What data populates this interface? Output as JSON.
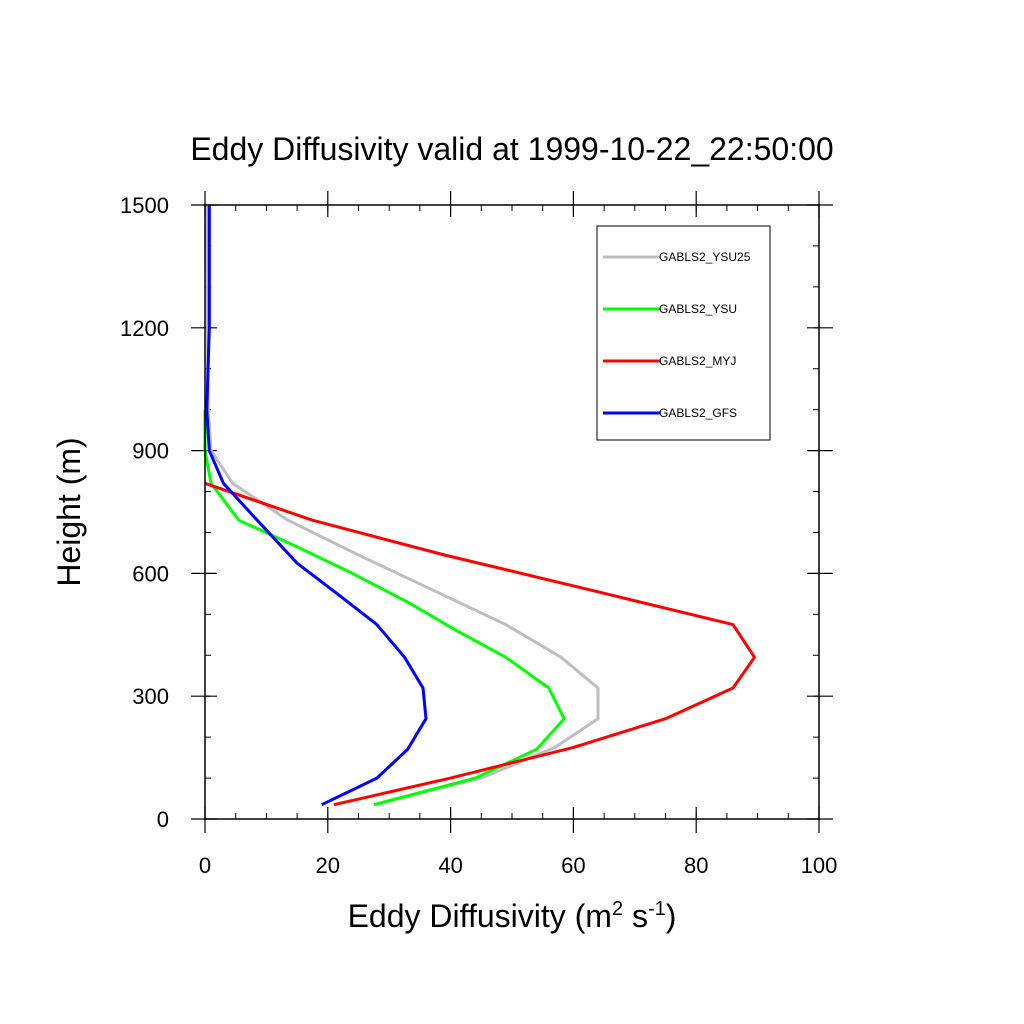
{
  "chart_data": {
    "type": "line",
    "title": "Eddy Diffusivity valid at 1999-10-22_22:50:00",
    "xlabel": {
      "text": "Eddy Diffusivity (m",
      "sup1": "2",
      "mid": " s",
      "sup2": "-1",
      "end": ")"
    },
    "ylabel": "Height (m)",
    "xlim": [
      0,
      100
    ],
    "ylim": [
      0,
      1500
    ],
    "xticks": [
      0,
      20,
      40,
      60,
      80,
      100
    ],
    "xtick_labels": [
      "0",
      "20",
      "40",
      "60",
      "80",
      "100"
    ],
    "yticks": [
      0,
      300,
      600,
      900,
      1200,
      1500
    ],
    "ytick_labels": [
      "0",
      "300",
      "600",
      "900",
      "1200",
      "1500"
    ],
    "grid": false,
    "legend_position": "top-right",
    "series": [
      {
        "name": "GABLS2_YSU25",
        "color": "#bebebe",
        "points": [
          [
            27.5,
            35
          ],
          [
            45,
            100
          ],
          [
            57,
            175
          ],
          [
            64,
            245
          ],
          [
            64,
            320
          ],
          [
            58,
            395
          ],
          [
            49,
            475
          ],
          [
            37,
            560
          ],
          [
            25,
            645
          ],
          [
            13.5,
            730
          ],
          [
            4.5,
            820
          ],
          [
            1,
            900
          ],
          [
            0.5,
            1000
          ],
          [
            0.4,
            1200
          ],
          [
            0.3,
            1500
          ]
        ]
      },
      {
        "name": "GABLS2_YSU",
        "color": "#00ff00",
        "points": [
          [
            27.5,
            35
          ],
          [
            44,
            100
          ],
          [
            54,
            170
          ],
          [
            58.5,
            245
          ],
          [
            56,
            320
          ],
          [
            49,
            395
          ],
          [
            41,
            460
          ],
          [
            33,
            530
          ],
          [
            24,
            600
          ],
          [
            15,
            665
          ],
          [
            5.5,
            730
          ],
          [
            1,
            820
          ],
          [
            0,
            900
          ],
          [
            0,
            1000
          ]
        ]
      },
      {
        "name": "GABLS2_MYJ",
        "color": "#ff0000",
        "points": [
          [
            21,
            35
          ],
          [
            40,
            100
          ],
          [
            60,
            175
          ],
          [
            75,
            245
          ],
          [
            86,
            320
          ],
          [
            89.5,
            395
          ],
          [
            86,
            475
          ],
          [
            64,
            555
          ],
          [
            39,
            645
          ],
          [
            17.5,
            730
          ],
          [
            0,
            820
          ]
        ]
      },
      {
        "name": "GABLS2_GFS",
        "color": "#0000ff",
        "points": [
          [
            19,
            35
          ],
          [
            28,
            100
          ],
          [
            33,
            170
          ],
          [
            36,
            245
          ],
          [
            35.5,
            320
          ],
          [
            32.5,
            395
          ],
          [
            28,
            475
          ],
          [
            22,
            545
          ],
          [
            15,
            625
          ],
          [
            8.5,
            730
          ],
          [
            3,
            820
          ],
          [
            0.7,
            900
          ],
          [
            0.3,
            1000
          ],
          [
            0.7,
            1200
          ],
          [
            0.7,
            1500
          ]
        ]
      }
    ]
  }
}
